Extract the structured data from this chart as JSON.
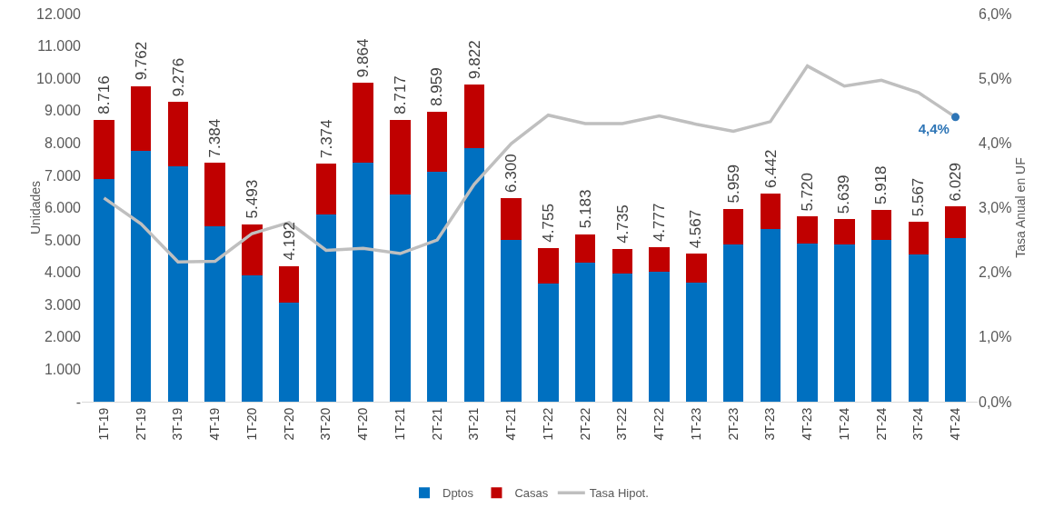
{
  "chart_data": {
    "type": "bar",
    "stacked": true,
    "ylabel": "Unidades",
    "y2label": "Tasa Anual en UF",
    "categories": [
      "1T-19",
      "2T-19",
      "3T-19",
      "4T-19",
      "1T-20",
      "2T-20",
      "3T-20",
      "4T-20",
      "1T-21",
      "2T-21",
      "3T-21",
      "4T-21",
      "1T-22",
      "2T-22",
      "3T-22",
      "4T-22",
      "1T-23",
      "2T-23",
      "3T-23",
      "4T-23",
      "1T-24",
      "2T-24",
      "3T-24",
      "4T-24"
    ],
    "series": [
      {
        "name": "Dptos",
        "color": "#0070c0",
        "values": [
          6880,
          7760,
          7270,
          5410,
          3920,
          3060,
          5780,
          7400,
          6410,
          7110,
          7840,
          4990,
          3660,
          4310,
          3950,
          4030,
          3690,
          4860,
          5330,
          4890,
          4860,
          4990,
          4550,
          5050
        ]
      },
      {
        "name": "Casas",
        "color": "#c00000",
        "values": [
          1836,
          2002,
          2006,
          1974,
          1573,
          1132,
          1594,
          2464,
          2307,
          1849,
          1982,
          1310,
          1095,
          873,
          785,
          747,
          877,
          1099,
          1112,
          830,
          779,
          928,
          1017,
          979
        ]
      },
      {
        "name": "Tasa Hipot.",
        "type": "line",
        "axis": "y2",
        "color": "#bfbfbf",
        "values": [
          3.15,
          2.75,
          2.16,
          2.17,
          2.6,
          2.77,
          2.34,
          2.37,
          2.29,
          2.5,
          3.36,
          3.99,
          4.43,
          4.3,
          4.3,
          4.42,
          4.29,
          4.18,
          4.33,
          5.19,
          4.88,
          4.97,
          4.78,
          4.4
        ],
        "value_labels": [
          null,
          null,
          null,
          null,
          null,
          null,
          null,
          null,
          null,
          null,
          null,
          null,
          null,
          null,
          null,
          null,
          null,
          null,
          null,
          null,
          null,
          null,
          null,
          "4,4%"
        ]
      }
    ],
    "totals": [
      "8.716",
      "9.762",
      "9.276",
      "7.384",
      "5.493",
      "4.192",
      "7.374",
      "9.864",
      "8.717",
      "8.959",
      "9.822",
      "6.300",
      "4.755",
      "5.183",
      "4.735",
      "4.777",
      "4.567",
      "5.959",
      "6.442",
      "5.720",
      "5.639",
      "5.918",
      "5.567",
      "6.029"
    ],
    "ylim": [
      0,
      12000
    ],
    "yticks": [
      {
        "value": 0,
        "label": "-"
      },
      {
        "value": 1000,
        "label": "1.000"
      },
      {
        "value": 2000,
        "label": "2.000"
      },
      {
        "value": 3000,
        "label": "3.000"
      },
      {
        "value": 4000,
        "label": "4.000"
      },
      {
        "value": 5000,
        "label": "5.000"
      },
      {
        "value": 6000,
        "label": "6.000"
      },
      {
        "value": 7000,
        "label": "7.000"
      },
      {
        "value": 8000,
        "label": "8.000"
      },
      {
        "value": 9000,
        "label": "9.000"
      },
      {
        "value": 10000,
        "label": "10.000"
      },
      {
        "value": 11000,
        "label": "11.000"
      },
      {
        "value": 12000,
        "label": "12.000"
      }
    ],
    "y2lim": [
      0,
      6
    ],
    "y2ticks": [
      {
        "value": 0,
        "label": "0,0%"
      },
      {
        "value": 1,
        "label": "1,0%"
      },
      {
        "value": 2,
        "label": "2,0%"
      },
      {
        "value": 3,
        "label": "3,0%"
      },
      {
        "value": 4,
        "label": "4,0%"
      },
      {
        "value": 5,
        "label": "5,0%"
      },
      {
        "value": 6,
        "label": "6,0%"
      }
    ],
    "grid": false,
    "legend": "bottom",
    "line_style": "solid"
  }
}
